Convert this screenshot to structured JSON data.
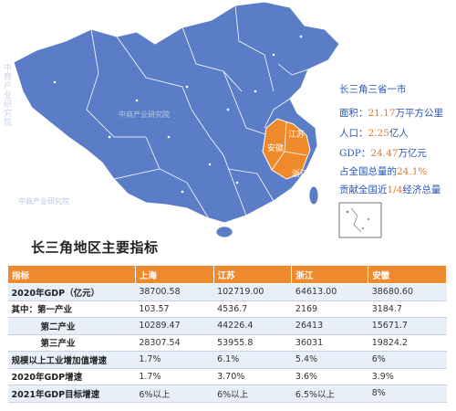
{
  "watermark": {
    "side": "中商产业研究院",
    "stamp": "中商产业研究院"
  },
  "map": {
    "region_labels": {
      "jiangsu": "江苏",
      "shanghai": "上海",
      "anhui": "安徽",
      "zhejiang": "浙江"
    },
    "colors": {
      "land": "#5b7cc6",
      "highlight": "#ef8a2c",
      "border": "#ffffff"
    }
  },
  "info": {
    "heading": "长三角三省一市",
    "area_label": "面积：",
    "area_value": "21.17",
    "area_unit": "万平方公里",
    "pop_label": "人口：",
    "pop_value": "2.25",
    "pop_unit": "亿人",
    "gdp_label": "GDP：",
    "gdp_value": "24.47",
    "gdp_unit": "万亿元",
    "share_label": "占全国总量的",
    "share_value": "24.1%",
    "contrib_prefix": "贡献全国近",
    "contrib_value": "1/4",
    "contrib_suffix": "经济总量"
  },
  "table": {
    "title": "长三角地区主要指标",
    "headers": [
      "指标",
      "上海",
      "江苏",
      "浙江",
      "安徽"
    ],
    "rows": [
      [
        "2020年GDP（亿元）",
        "38700.58",
        "102719.00",
        "64613.00",
        "38680.60"
      ],
      [
        "其中：第一产业",
        "103.57",
        "4536.7",
        "2169",
        "3184.7"
      ],
      [
        "第二产业",
        "10289.47",
        "44226.4",
        "26413",
        "15671.7"
      ],
      [
        "第三产业",
        "28307.54",
        "53955.8",
        "36031",
        "19824.2"
      ],
      [
        "规模以上工业增加值增速",
        "1.7%",
        "6.1%",
        "5.4%",
        "6%"
      ],
      [
        "2020年GDP增速",
        "1.7%",
        "3.70%",
        "3.6%",
        "3.9%"
      ],
      [
        "2021年GDP目标增速",
        "6%以上",
        "6%以上",
        "6.5%以上",
        "8%"
      ]
    ]
  }
}
